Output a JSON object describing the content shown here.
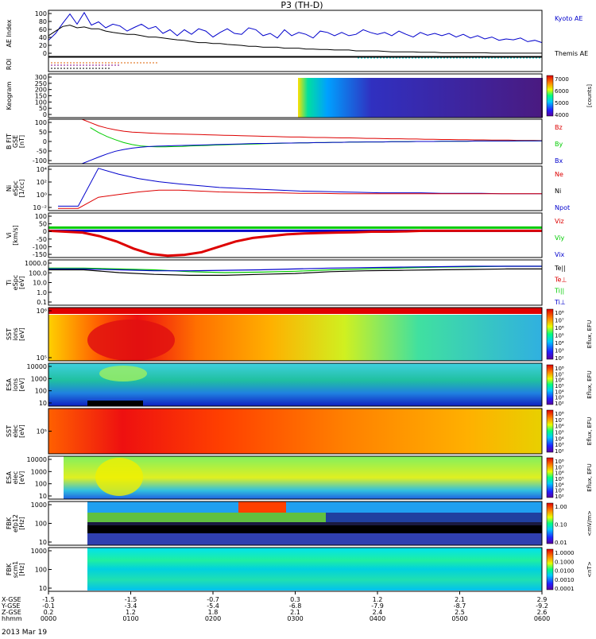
{
  "title": "P3 (TH-D)",
  "date": "2013 Mar 19",
  "colors": {
    "blue": "#0000cc",
    "red": "#dd0000",
    "green": "#00cc00",
    "black": "#000000",
    "cyan": "#00cccc"
  },
  "chart_data": {
    "type": "line",
    "panels": [
      {
        "id": "ae",
        "ylabel": [
          "AE Index"
        ],
        "ylim": [
          0,
          100
        ],
        "ticks": [
          "100",
          "80",
          "60",
          "40",
          "20",
          "0"
        ],
        "legend": [
          {
            "text": "Kyoto AE",
            "color": "#0000cc"
          },
          {
            "text": "Themis AE",
            "color": "#000000"
          }
        ]
      },
      {
        "id": "roi",
        "ylabel": [
          "ROI"
        ],
        "ticks": [],
        "legend": []
      },
      {
        "id": "keogram",
        "ylabel": [
          "Keogram"
        ],
        "ticks": [
          "300",
          "250",
          "200",
          "150",
          "100",
          "50",
          "0"
        ],
        "colorbar": {
          "labels": [
            "7000",
            "6000",
            "5000",
            "4000"
          ],
          "title": "[counts]"
        },
        "legend": []
      },
      {
        "id": "bfield",
        "ylabel": [
          "B FIT",
          "GSE",
          "[nT]"
        ],
        "ylim": [
          -100,
          100
        ],
        "ticks": [
          "100",
          "50",
          "0",
          "-50",
          "-100"
        ],
        "legend": [
          {
            "text": "Bz",
            "color": "#dd0000"
          },
          {
            "text": "By",
            "color": "#00cc00"
          },
          {
            "text": "Bx",
            "color": "#0000cc"
          }
        ]
      },
      {
        "id": "density",
        "ylabel": [
          "Ni",
          "eSpc",
          "[1/cc]"
        ],
        "ticks": [
          "10⁴",
          "10²",
          "10⁰",
          "10⁻²"
        ],
        "legend": [
          {
            "text": "Ne",
            "color": "#dd0000"
          },
          {
            "text": "Ni",
            "color": "#000000"
          },
          {
            "text": "Npot",
            "color": "#0000cc"
          }
        ]
      },
      {
        "id": "velocity",
        "ylabel": [
          "Vi",
          "[km/s]"
        ],
        "ylim": [
          -150,
          100
        ],
        "ticks": [
          "100",
          "50",
          "0",
          "-50",
          "-100",
          "-150"
        ],
        "legend": [
          {
            "text": "Viz",
            "color": "#dd0000"
          },
          {
            "text": "Viy",
            "color": "#00cc00"
          },
          {
            "text": "Vix",
            "color": "#0000cc"
          }
        ]
      },
      {
        "id": "temperature",
        "ylabel": [
          "Ti",
          "eSpc",
          "[eV]"
        ],
        "ticks": [
          "1000.0",
          "100.0",
          "10.0",
          "1.0",
          "0.1"
        ],
        "legend": [
          {
            "text": "Te||",
            "color": "#000000"
          },
          {
            "text": "Te⊥",
            "color": "#dd0000"
          },
          {
            "text": "Ti||",
            "color": "#00cc00"
          },
          {
            "text": "Ti⊥",
            "color": "#0000cc"
          }
        ]
      },
      {
        "id": "sst_i",
        "ylabel": [
          "SST",
          "ions",
          "[eV]"
        ],
        "ticks": [
          "10⁶",
          "10⁵"
        ],
        "colorbar": {
          "labels": [
            "10⁸",
            "10⁷",
            "10⁶",
            "10⁵",
            "10⁴",
            "10³",
            "10²"
          ],
          "title": "Eflux, EFU"
        },
        "legend": []
      },
      {
        "id": "esa_i",
        "ylabel": [
          "ESA",
          "ions",
          "[eV]"
        ],
        "ticks": [
          "10000",
          "1000",
          "100",
          "10"
        ],
        "colorbar": {
          "labels": [
            "10⁸",
            "10⁷",
            "10⁶",
            "10⁵",
            "10⁴",
            "10³",
            "10²"
          ],
          "title": "Eflux, EFU"
        },
        "legend": []
      },
      {
        "id": "sst_e",
        "ylabel": [
          "SST",
          "elec",
          "[eV]"
        ],
        "ticks": [
          "10⁵"
        ],
        "colorbar": {
          "labels": [
            "10⁸",
            "10⁷",
            "10⁶",
            "10⁵",
            "10⁴",
            "10³",
            "10²"
          ],
          "title": "Eflux, EFU"
        },
        "legend": []
      },
      {
        "id": "esa_e",
        "ylabel": [
          "ESA",
          "elec",
          "[eV]"
        ],
        "ticks": [
          "10000",
          "1000",
          "100",
          "10"
        ],
        "colorbar": {
          "labels": [
            "10⁸",
            "10⁷",
            "10⁶",
            "10⁵",
            "10⁴",
            "10³",
            "10²"
          ],
          "title": "Eflux, EFU"
        },
        "legend": []
      },
      {
        "id": "fbk_e",
        "ylabel": [
          "FBK",
          "efp12",
          "[Hz]"
        ],
        "ticks": [
          "1000",
          "100",
          "10"
        ],
        "colorbar": {
          "labels": [
            "1.00",
            "0.10",
            "0.01"
          ],
          "title": "<mV/m>"
        },
        "legend": []
      },
      {
        "id": "fbk_b",
        "ylabel": [
          "FBK",
          "scm1",
          "[Hz]"
        ],
        "ticks": [
          "1000",
          "100",
          "10"
        ],
        "colorbar": {
          "labels": [
            "1.0000",
            "0.1000",
            "0.0100",
            "0.0010",
            "0.0001"
          ],
          "title": "<nT>"
        },
        "legend": []
      }
    ],
    "ae_kyoto": [
      35,
      50,
      72,
      92,
      70,
      95,
      68,
      75,
      62,
      70,
      66,
      55,
      63,
      70,
      60,
      65,
      50,
      58,
      45,
      58,
      48,
      60,
      55,
      42,
      52,
      60,
      50,
      48,
      62,
      58,
      45,
      50,
      40,
      58,
      45,
      52,
      48,
      40,
      55,
      52,
      45,
      52,
      45,
      48,
      58,
      52,
      48,
      52,
      45,
      55,
      48,
      42,
      52,
      46,
      50,
      45,
      50,
      42,
      48,
      40,
      45,
      38,
      42,
      35,
      38,
      36,
      40,
      32,
      35,
      30
    ],
    "ae_themis": [
      45,
      55,
      65,
      68,
      62,
      64,
      60,
      60,
      55,
      52,
      50,
      48,
      48,
      45,
      42,
      42,
      40,
      38,
      36,
      35,
      32,
      30,
      30,
      28,
      28,
      26,
      25,
      24,
      22,
      22,
      20,
      20,
      20,
      18,
      18,
      18,
      16,
      16,
      15,
      15,
      14,
      14,
      14,
      12,
      12,
      12,
      12,
      11,
      10,
      10,
      10,
      10,
      9,
      9,
      9,
      8,
      8,
      8,
      8,
      8,
      8,
      8,
      7,
      7,
      7,
      7,
      7,
      7,
      7,
      7
    ],
    "b_bz": [
      null,
      null,
      null,
      null,
      100,
      85,
      70,
      60,
      52,
      46,
      42,
      40,
      38,
      36,
      35,
      34,
      33,
      32,
      31,
      30,
      29,
      28,
      27,
      26,
      25,
      24,
      23,
      22,
      21,
      20,
      20,
      19,
      18,
      18,
      17,
      16,
      16,
      15,
      14,
      14,
      13,
      12,
      12,
      11,
      11,
      10,
      10,
      9,
      9,
      8,
      8,
      7,
      7,
      6,
      6,
      6,
      5,
      5,
      5,
      4
    ],
    "b_by": [
      null,
      null,
      null,
      null,
      null,
      62,
      40,
      22,
      8,
      -5,
      -14,
      -20,
      -23,
      -24,
      -24,
      -23,
      -22,
      -20,
      -19,
      -18,
      -16,
      -15,
      -14,
      -13,
      -12,
      -11,
      -10,
      -9,
      -8,
      -7,
      -6,
      -6,
      -5,
      -5,
      -4,
      -4,
      -3,
      -3,
      -2,
      -2,
      -2,
      -1,
      -1,
      -1,
      0,
      0,
      0,
      1,
      1,
      1,
      1,
      2,
      2,
      2,
      2,
      2,
      2,
      3,
      3,
      3
    ],
    "b_bx": [
      null,
      null,
      null,
      null,
      -100,
      -85,
      -70,
      -56,
      -44,
      -36,
      -30,
      -26,
      -23,
      -21,
      -20,
      -19,
      -18,
      -17,
      -16,
      -15,
      -14,
      -13,
      -12,
      -11,
      -10,
      -9,
      -9,
      -8,
      -7,
      -7,
      -6,
      -6,
      -5,
      -5,
      -4,
      -4,
      -3,
      -3,
      -2,
      -2,
      -2,
      -1,
      -1,
      -1,
      0,
      0,
      0,
      1,
      1,
      1,
      1,
      2,
      2,
      2,
      2,
      2,
      3,
      3,
      3,
      3
    ],
    "velocity_vz_dip": [
      0,
      -5,
      -10,
      -30,
      -60,
      -100,
      -130,
      -140,
      -135,
      -120,
      -90,
      -60,
      -40,
      -30,
      -20,
      -15,
      -12,
      -10,
      -8,
      -5,
      -5,
      -3,
      0,
      0,
      0,
      0,
      0,
      0,
      0,
      0
    ],
    "time_axis": {
      "ticklabels": [
        "0000",
        "0100",
        "0200",
        "0300",
        "0400",
        "0500",
        "0600"
      ],
      "rows": [
        {
          "label": "X-GSE",
          "values": [
            "-1.5",
            "-1.5",
            "-0.7",
            "0.3",
            "1.2",
            "2.1",
            "2.9"
          ]
        },
        {
          "label": "Y-GSE",
          "values": [
            "-0.1",
            "-3.4",
            "-5.4",
            "-6.8",
            "-7.9",
            "-8.7",
            "-9.2"
          ]
        },
        {
          "label": "Z-GSE",
          "values": [
            "0.2",
            "1.2",
            "1.8",
            "2.1",
            "2.4",
            "2.5",
            "2.6"
          ]
        },
        {
          "label": "hhmm",
          "values": [
            "0000",
            "0100",
            "0200",
            "0300",
            "0400",
            "0500",
            "0600"
          ]
        }
      ]
    }
  }
}
